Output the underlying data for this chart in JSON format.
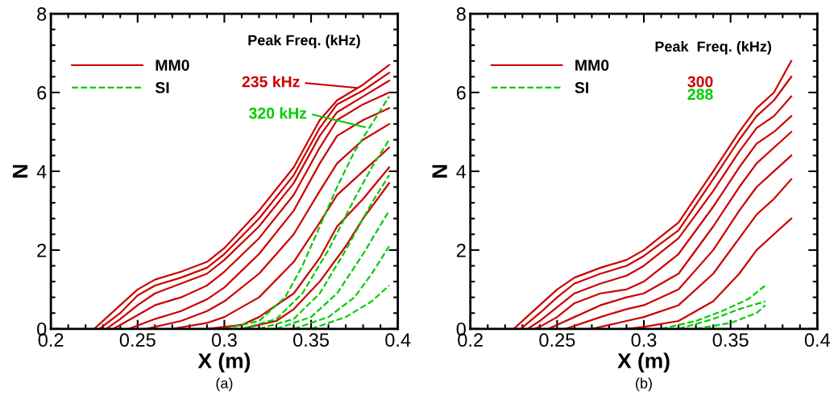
{
  "chart_data": [
    {
      "type": "line",
      "xlabel": "X (m)",
      "ylabel": "N",
      "xlim": [
        0.2,
        0.4
      ],
      "ylim": [
        0,
        8
      ],
      "xticks": [
        0.2,
        0.25,
        0.3,
        0.35,
        0.4
      ],
      "yticks": [
        0,
        2,
        4,
        6,
        8
      ],
      "legend": "top left",
      "grid": false,
      "annotations": [
        "Peak Freq. (kHz)",
        "235 kHz",
        "320 kHz",
        "(a)"
      ],
      "series": [
        {
          "name": "MM0",
          "color": "#cc0000",
          "line_style": "solid",
          "x": [
            0.225,
            0.24,
            0.25,
            0.26,
            0.275,
            0.29,
            0.3,
            0.32,
            0.34,
            0.355,
            0.365,
            0.38,
            0.395
          ],
          "values": [
            0,
            0.6,
            1.0,
            1.25,
            1.45,
            1.7,
            2.05,
            3.0,
            4.1,
            5.3,
            5.8,
            6.2,
            6.7
          ]
        },
        {
          "color": "#cc0000",
          "line_style": "solid",
          "x": [
            0.228,
            0.24,
            0.25,
            0.26,
            0.275,
            0.29,
            0.3,
            0.32,
            0.34,
            0.355,
            0.365,
            0.38,
            0.395
          ],
          "values": [
            0,
            0.4,
            0.85,
            1.1,
            1.3,
            1.55,
            1.9,
            2.8,
            3.9,
            5.1,
            5.7,
            6.05,
            6.5
          ]
        },
        {
          "color": "#cc0000",
          "line_style": "solid",
          "x": [
            0.232,
            0.24,
            0.25,
            0.26,
            0.275,
            0.29,
            0.3,
            0.32,
            0.34,
            0.355,
            0.365,
            0.38,
            0.395
          ],
          "values": [
            0,
            0.25,
            0.6,
            0.9,
            1.15,
            1.4,
            1.75,
            2.6,
            3.7,
            4.9,
            5.5,
            5.9,
            6.3
          ]
        },
        {
          "color": "#cc0000",
          "line_style": "solid",
          "x": [
            0.236,
            0.24,
            0.25,
            0.26,
            0.275,
            0.29,
            0.3,
            0.32,
            0.34,
            0.355,
            0.365,
            0.38,
            0.395
          ],
          "values": [
            0,
            0.1,
            0.35,
            0.6,
            0.8,
            1.1,
            1.45,
            2.3,
            3.4,
            4.6,
            5.3,
            5.7,
            6.0
          ]
        },
        {
          "color": "#cc0000",
          "line_style": "solid",
          "x": [
            0.245,
            0.26,
            0.275,
            0.29,
            0.3,
            0.32,
            0.34,
            0.355,
            0.365,
            0.38,
            0.395
          ],
          "values": [
            0,
            0.25,
            0.45,
            0.75,
            1.05,
            1.9,
            3.0,
            4.2,
            4.9,
            5.3,
            5.6
          ]
        },
        {
          "color": "#cc0000",
          "line_style": "solid",
          "x": [
            0.255,
            0.275,
            0.29,
            0.3,
            0.32,
            0.34,
            0.355,
            0.365,
            0.38,
            0.395
          ],
          "values": [
            0,
            0.2,
            0.45,
            0.7,
            1.4,
            2.4,
            3.5,
            4.2,
            4.8,
            5.2
          ]
        },
        {
          "color": "#cc0000",
          "line_style": "solid",
          "x": [
            0.27,
            0.29,
            0.3,
            0.32,
            0.34,
            0.355,
            0.365,
            0.38,
            0.395
          ],
          "values": [
            0,
            0.15,
            0.3,
            0.8,
            1.7,
            2.7,
            3.4,
            4.0,
            4.6
          ]
        },
        {
          "color": "#cc0000",
          "line_style": "solid",
          "x": [
            0.29,
            0.31,
            0.32,
            0.34,
            0.355,
            0.365,
            0.38,
            0.395
          ],
          "values": [
            0,
            0.1,
            0.3,
            0.9,
            1.8,
            2.6,
            3.3,
            4.1
          ]
        },
        {
          "color": "#cc0000",
          "line_style": "solid",
          "x": [
            0.31,
            0.33,
            0.34,
            0.355,
            0.37,
            0.38,
            0.395
          ],
          "values": [
            0,
            0.2,
            0.5,
            1.2,
            2.1,
            2.8,
            3.7
          ]
        },
        {
          "name": "SI",
          "color": "#00cc00",
          "line_style": "dashed",
          "x": [
            0.3,
            0.32,
            0.335,
            0.345,
            0.355,
            0.365,
            0.375,
            0.385,
            0.395
          ],
          "values": [
            0,
            0.2,
            0.8,
            1.6,
            2.6,
            3.6,
            4.5,
            5.2,
            5.9
          ]
        },
        {
          "color": "#00cc00",
          "line_style": "dashed",
          "x": [
            0.31,
            0.33,
            0.345,
            0.36,
            0.375,
            0.385,
            0.395
          ],
          "values": [
            0,
            0.25,
            0.9,
            2.0,
            3.3,
            4.1,
            4.8
          ]
        },
        {
          "color": "#00cc00",
          "line_style": "dashed",
          "x": [
            0.32,
            0.34,
            0.355,
            0.37,
            0.385,
            0.395
          ],
          "values": [
            0,
            0.25,
            0.9,
            2.0,
            3.2,
            3.9
          ]
        },
        {
          "color": "#00cc00",
          "line_style": "dashed",
          "x": [
            0.33,
            0.35,
            0.365,
            0.38,
            0.395
          ],
          "values": [
            0,
            0.3,
            0.9,
            1.9,
            3.0
          ]
        },
        {
          "color": "#00cc00",
          "line_style": "dashed",
          "x": [
            0.34,
            0.36,
            0.375,
            0.385,
            0.395
          ],
          "values": [
            0,
            0.3,
            0.8,
            1.4,
            2.1
          ]
        },
        {
          "color": "#00cc00",
          "line_style": "dashed",
          "x": [
            0.35,
            0.37,
            0.385,
            0.395
          ],
          "values": [
            0,
            0.3,
            0.7,
            1.1
          ]
        }
      ]
    },
    {
      "type": "line",
      "xlabel": "X (m)",
      "ylabel": "N",
      "xlim": [
        0.2,
        0.4
      ],
      "ylim": [
        0,
        8
      ],
      "xticks": [
        0.2,
        0.25,
        0.3,
        0.35,
        0.4
      ],
      "yticks": [
        0,
        2,
        4,
        6,
        8
      ],
      "legend": "top left",
      "grid": false,
      "annotations": [
        "Peak  Freq. (kHz)",
        "300",
        "288",
        "(b)"
      ],
      "series": [
        {
          "name": "MM0",
          "color": "#cc0000",
          "line_style": "solid",
          "x": [
            0.225,
            0.24,
            0.25,
            0.26,
            0.275,
            0.29,
            0.3,
            0.32,
            0.34,
            0.355,
            0.365,
            0.375,
            0.385
          ],
          "values": [
            0,
            0.6,
            1.0,
            1.3,
            1.55,
            1.75,
            2.0,
            2.7,
            4.0,
            5.0,
            5.6,
            6.0,
            6.8
          ]
        },
        {
          "color": "#cc0000",
          "line_style": "solid",
          "x": [
            0.229,
            0.24,
            0.25,
            0.26,
            0.275,
            0.29,
            0.3,
            0.32,
            0.34,
            0.355,
            0.365,
            0.375,
            0.385
          ],
          "values": [
            0,
            0.4,
            0.8,
            1.15,
            1.4,
            1.6,
            1.85,
            2.5,
            3.8,
            4.8,
            5.4,
            5.8,
            6.4
          ]
        },
        {
          "color": "#cc0000",
          "line_style": "solid",
          "x": [
            0.233,
            0.24,
            0.25,
            0.26,
            0.275,
            0.29,
            0.3,
            0.32,
            0.34,
            0.355,
            0.365,
            0.375,
            0.385
          ],
          "values": [
            0,
            0.2,
            0.55,
            0.9,
            1.15,
            1.35,
            1.6,
            2.3,
            3.5,
            4.5,
            5.1,
            5.4,
            5.9
          ]
        },
        {
          "color": "#cc0000",
          "line_style": "solid",
          "x": [
            0.237,
            0.24,
            0.25,
            0.26,
            0.275,
            0.29,
            0.3,
            0.32,
            0.34,
            0.355,
            0.365,
            0.375,
            0.385
          ],
          "values": [
            0,
            0.05,
            0.3,
            0.65,
            0.9,
            1.0,
            1.2,
            1.9,
            3.1,
            4.1,
            4.7,
            5.0,
            5.4
          ]
        },
        {
          "color": "#cc0000",
          "line_style": "solid",
          "x": [
            0.245,
            0.26,
            0.275,
            0.29,
            0.3,
            0.32,
            0.34,
            0.355,
            0.365,
            0.375,
            0.385
          ],
          "values": [
            0,
            0.3,
            0.6,
            0.8,
            0.9,
            1.4,
            2.6,
            3.6,
            4.2,
            4.6,
            5.0
          ]
        },
        {
          "color": "#cc0000",
          "line_style": "solid",
          "x": [
            0.255,
            0.275,
            0.29,
            0.3,
            0.32,
            0.34,
            0.355,
            0.365,
            0.375,
            0.385
          ],
          "values": [
            0,
            0.3,
            0.5,
            0.6,
            1.0,
            2.0,
            3.0,
            3.6,
            4.0,
            4.4
          ]
        },
        {
          "color": "#cc0000",
          "line_style": "solid",
          "x": [
            0.27,
            0.29,
            0.3,
            0.32,
            0.34,
            0.355,
            0.365,
            0.375,
            0.385
          ],
          "values": [
            0,
            0.2,
            0.3,
            0.6,
            1.4,
            2.3,
            2.9,
            3.3,
            3.8
          ]
        },
        {
          "color": "#cc0000",
          "line_style": "solid",
          "x": [
            0.29,
            0.3,
            0.32,
            0.34,
            0.355,
            0.365,
            0.375,
            0.385
          ],
          "values": [
            0,
            0.05,
            0.2,
            0.7,
            1.4,
            2.0,
            2.4,
            2.8
          ]
        },
        {
          "name": "SI",
          "color": "#00cc00",
          "line_style": "dashed",
          "x": [
            0.31,
            0.33,
            0.345,
            0.36,
            0.37
          ],
          "values": [
            0,
            0.2,
            0.45,
            0.75,
            1.1
          ]
        },
        {
          "color": "#00cc00",
          "line_style": "dashed",
          "x": [
            0.32,
            0.34,
            0.355,
            0.37
          ],
          "values": [
            0,
            0.25,
            0.5,
            0.7
          ]
        },
        {
          "color": "#00cc00",
          "line_style": "dashed",
          "x": [
            0.33,
            0.35,
            0.365,
            0.37
          ],
          "values": [
            0,
            0.15,
            0.4,
            0.6
          ]
        }
      ]
    }
  ]
}
